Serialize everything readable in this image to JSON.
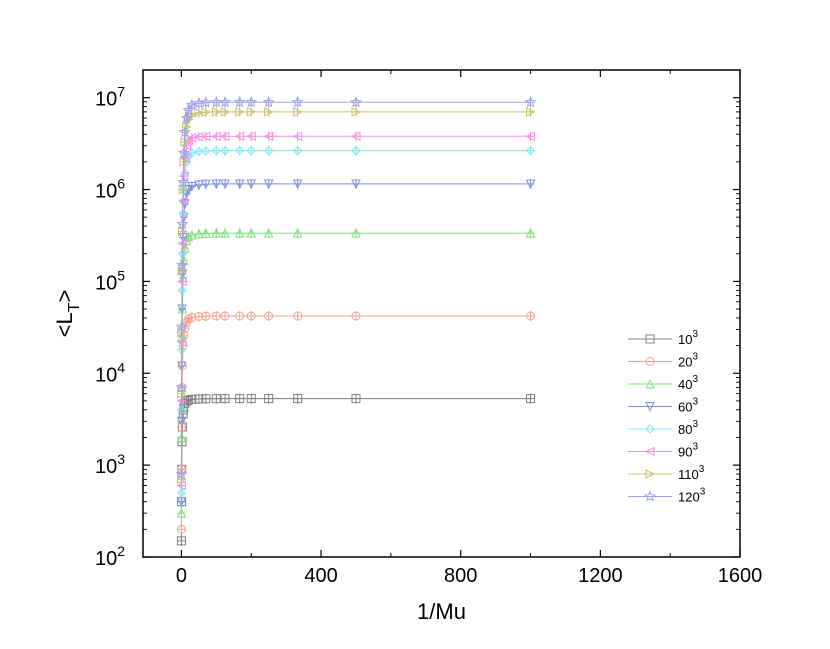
{
  "chart_data": {
    "type": "scatter",
    "title": "",
    "xlabel": "1/Mu",
    "ylabel_main": "<L",
    "ylabel_sub": "T",
    "ylabel_end": ">",
    "xlim": [
      -110,
      1600
    ],
    "ylim": [
      100,
      20000000
    ],
    "y_scale": "log",
    "grid": false,
    "legend_position": "bottom-right",
    "x_ticks": [
      0,
      400,
      800,
      1200,
      1600
    ],
    "x_tick_labels": [
      "0",
      "400",
      "800",
      "1200",
      "1600"
    ],
    "y_ticks": [
      100,
      1000,
      10000,
      100000,
      1000000,
      10000000
    ],
    "y_tick_labels": [
      {
        "base": "10",
        "exp": "2"
      },
      {
        "base": "10",
        "exp": "3"
      },
      {
        "base": "10",
        "exp": "4"
      },
      {
        "base": "10",
        "exp": "5"
      },
      {
        "base": "10",
        "exp": "6"
      },
      {
        "base": "10",
        "exp": "7"
      }
    ],
    "x": [
      0.1,
      0.5,
      1,
      2,
      3,
      5,
      7,
      10,
      15,
      20,
      30,
      50,
      70,
      100,
      125,
      167,
      200,
      250,
      333,
      500,
      1000
    ],
    "series": [
      {
        "label_base": "10",
        "label_exp": "3",
        "color": "#808080",
        "marker": "square",
        "plateau": 5300,
        "values": [
          150,
          400,
          900,
          1800,
          2600,
          3600,
          4200,
          4700,
          5000,
          5100,
          5200,
          5250,
          5280,
          5290,
          5300,
          5300,
          5300,
          5300,
          5300,
          5300,
          5300
        ]
      },
      {
        "label_base": "20",
        "label_exp": "3",
        "color": "#f4a090",
        "marker": "circle",
        "plateau": 42000,
        "values": [
          200,
          900,
          2600,
          7000,
          12000,
          20000,
          26000,
          31000,
          36000,
          39000,
          40500,
          41500,
          41800,
          42000,
          42000,
          42000,
          42000,
          42000,
          42000,
          42000,
          42000
        ]
      },
      {
        "label_base": "40",
        "label_exp": "3",
        "color": "#80e080",
        "marker": "triangle-up",
        "plateau": 335000,
        "values": [
          300,
          2000,
          7000,
          25000,
          50000,
          110000,
          170000,
          230000,
          280000,
          305000,
          320000,
          330000,
          333000,
          335000,
          335000,
          335000,
          335000,
          335000,
          335000,
          335000,
          335000
        ]
      },
      {
        "label_base": "60",
        "label_exp": "3",
        "color": "#8090e0",
        "marker": "triangle-down",
        "plateau": 1150000,
        "values": [
          400,
          3000,
          12000,
          50000,
          120000,
          300000,
          500000,
          700000,
          900000,
          1000000,
          1080000,
          1120000,
          1140000,
          1150000,
          1150000,
          1150000,
          1150000,
          1150000,
          1150000,
          1150000,
          1150000
        ]
      },
      {
        "label_base": "80",
        "label_exp": "3",
        "color": "#80e8f0",
        "marker": "diamond",
        "plateau": 2650000,
        "values": [
          500,
          4000,
          18000,
          80000,
          200000,
          550000,
          1000000,
          1500000,
          2000000,
          2300000,
          2500000,
          2600000,
          2630000,
          2650000,
          2650000,
          2650000,
          2650000,
          2650000,
          2650000,
          2650000,
          2650000
        ]
      },
      {
        "label_base": "90",
        "label_exp": "3",
        "color": "#f090e0",
        "marker": "triangle-left",
        "plateau": 3800000,
        "values": [
          600,
          5000,
          22000,
          100000,
          260000,
          750000,
          1400000,
          2200000,
          3000000,
          3400000,
          3650000,
          3750000,
          3780000,
          3800000,
          3800000,
          3800000,
          3800000,
          3800000,
          3800000,
          3800000,
          3800000
        ]
      },
      {
        "label_base": "110",
        "label_exp": "3",
        "color": "#c8c070",
        "marker": "triangle-right",
        "plateau": 7000000,
        "values": [
          700,
          6000,
          28000,
          130000,
          350000,
          1000000,
          2000000,
          3300000,
          4800000,
          5800000,
          6500000,
          6850000,
          6950000,
          7000000,
          7000000,
          7000000,
          7000000,
          7000000,
          7000000,
          7000000,
          7000000
        ]
      },
      {
        "label_base": "120",
        "label_exp": "3",
        "color": "#a0a0e8",
        "marker": "star",
        "plateau": 8900000,
        "values": [
          800,
          7000,
          32000,
          150000,
          420000,
          1200000,
          2500000,
          4200000,
          6000000,
          7300000,
          8300000,
          8700000,
          8850000,
          8900000,
          8900000,
          8900000,
          8900000,
          8900000,
          8900000,
          8900000,
          8900000
        ]
      }
    ]
  }
}
